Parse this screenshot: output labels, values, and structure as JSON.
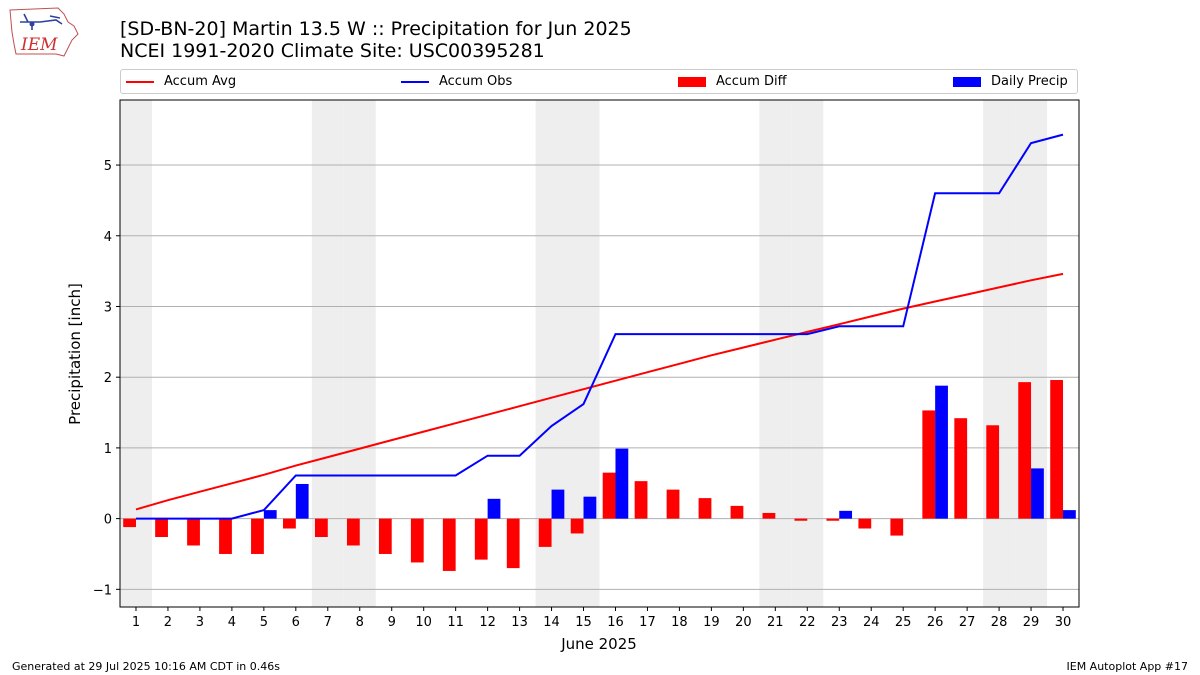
{
  "header": {
    "title_line1": "[SD-BN-20] Martin 13.5 W :: Precipitation for Jun 2025",
    "title_line2": "NCEI 1991-2020 Climate Site: USC00395281",
    "logo_text": "IEM"
  },
  "footer": {
    "left": "Generated at 29 Jul 2025 10:16 AM CDT in 0.46s",
    "right": "IEM Autoplot App #17"
  },
  "colors": {
    "accum_avg": "#ff0000",
    "accum_obs": "#0000ff",
    "accum_diff": "#ff0000",
    "daily_precip": "#0000ff",
    "weekend_band": "#eeeeee",
    "grid": "#b0b0b0"
  },
  "chart_data": {
    "type": "bar",
    "xlabel": "June 2025",
    "ylabel": "Precipitation [inch]",
    "ylim": [
      -1.25,
      5.92
    ],
    "yticks": [
      -1,
      0,
      1,
      2,
      3,
      4,
      5
    ],
    "xlim": [
      0.5,
      30.5
    ],
    "grid": "horizontal",
    "legend": {
      "placement": "top",
      "entries": [
        "Accum Avg",
        "Accum Obs",
        "Accum Diff",
        "Daily Precip"
      ]
    },
    "days": [
      1,
      2,
      3,
      4,
      5,
      6,
      7,
      8,
      9,
      10,
      11,
      12,
      13,
      14,
      15,
      16,
      17,
      18,
      19,
      20,
      21,
      22,
      23,
      24,
      25,
      26,
      27,
      28,
      29,
      30
    ],
    "weekend_days": [
      1,
      7,
      8,
      14,
      15,
      21,
      22,
      28,
      29
    ],
    "series": [
      {
        "name": "Accum Avg",
        "type": "line",
        "values": [
          0.13,
          0.26,
          0.38,
          0.5,
          0.62,
          0.75,
          0.87,
          0.99,
          1.11,
          1.23,
          1.35,
          1.47,
          1.59,
          1.71,
          1.83,
          1.95,
          2.07,
          2.19,
          2.31,
          2.42,
          2.53,
          2.64,
          2.75,
          2.86,
          2.97,
          3.07,
          3.17,
          3.27,
          3.37,
          3.46
        ]
      },
      {
        "name": "Accum Obs",
        "type": "line",
        "values": [
          0,
          0,
          0,
          0,
          0.12,
          0.61,
          0.61,
          0.61,
          0.61,
          0.61,
          0.61,
          0.89,
          0.89,
          1.31,
          1.62,
          2.61,
          2.61,
          2.61,
          2.61,
          2.61,
          2.61,
          2.61,
          2.72,
          2.72,
          2.72,
          4.6,
          4.6,
          4.6,
          5.31,
          5.43
        ]
      },
      {
        "name": "Accum Diff",
        "type": "bar",
        "values": [
          -0.12,
          -0.26,
          -0.38,
          -0.5,
          -0.5,
          -0.14,
          -0.26,
          -0.38,
          -0.5,
          -0.62,
          -0.74,
          -0.58,
          -0.7,
          -0.4,
          -0.21,
          0.65,
          0.53,
          0.41,
          0.29,
          0.18,
          0.08,
          -0.03,
          -0.03,
          -0.14,
          -0.24,
          1.53,
          1.42,
          1.32,
          1.93,
          1.96
        ]
      },
      {
        "name": "Daily Precip",
        "type": "bar",
        "values": [
          0,
          0,
          0,
          0,
          0.12,
          0.49,
          0,
          0,
          0,
          0,
          0,
          0.28,
          0,
          0.41,
          0.31,
          0.99,
          0,
          0,
          0,
          0,
          0,
          0,
          0.11,
          0,
          0,
          1.88,
          0,
          0,
          0.71,
          0.12
        ]
      }
    ]
  }
}
